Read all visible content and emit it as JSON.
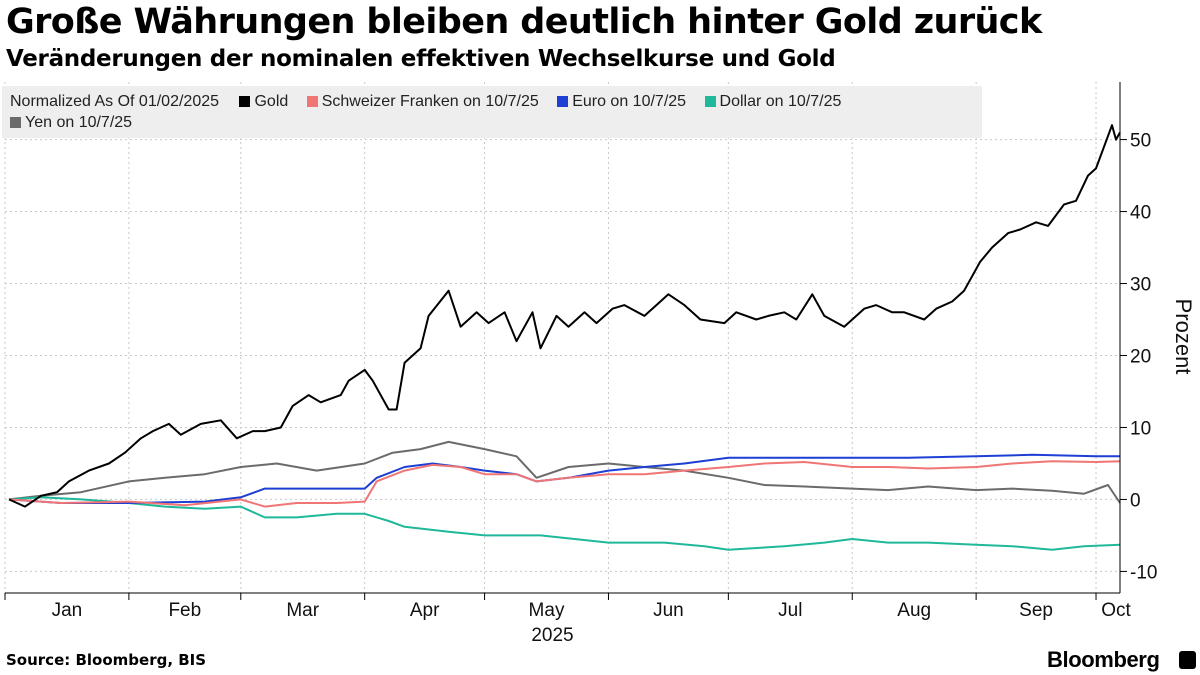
{
  "header": {
    "title": "Große Währungen bleiben deutlich hinter Gold zurück",
    "subtitle": "Veränderungen der nominalen effektiven Wechselkurse und Gold"
  },
  "legend": {
    "note": "Normalized As Of 01/02/2025",
    "items": [
      {
        "label": "Gold",
        "color": "#000000"
      },
      {
        "label": "Schweizer Franken on 10/7/25",
        "color": "#f07575"
      },
      {
        "label": "Euro on 10/7/25",
        "color": "#1d3fd4"
      },
      {
        "label": "Dollar on 10/7/25",
        "color": "#1fb89a"
      },
      {
        "label": "Yen on 10/7/25",
        "color": "#6b6b6b"
      }
    ]
  },
  "footer": {
    "source": "Source: Bloomberg, BIS",
    "brand": "Bloomberg"
  },
  "chart_data": {
    "type": "line",
    "x_type": "date",
    "xlim": [
      "2025-01-01",
      "2025-10-07"
    ],
    "ylim": [
      -13,
      58
    ],
    "ylabel": "Prozent",
    "y_ticks": [
      -10,
      0,
      10,
      20,
      30,
      40,
      50
    ],
    "x_ticks": [
      {
        "date": "2025-01-01",
        "label": "Jan"
      },
      {
        "date": "2025-02-01",
        "label": "Feb"
      },
      {
        "date": "2025-03-01",
        "label": "Mar"
      },
      {
        "date": "2025-04-01",
        "label": "Apr"
      },
      {
        "date": "2025-05-01",
        "label": "May"
      },
      {
        "date": "2025-06-01",
        "label": "Jun"
      },
      {
        "date": "2025-07-01",
        "label": "Jul"
      },
      {
        "date": "2025-08-01",
        "label": "Aug"
      },
      {
        "date": "2025-09-01",
        "label": "Sep"
      },
      {
        "date": "2025-10-01",
        "label": "Oct"
      }
    ],
    "year_label": "2025",
    "grid": true,
    "legend_position": "top-left",
    "series": [
      {
        "name": "Gold",
        "color": "#000000",
        "points": [
          [
            "2025-01-02",
            0
          ],
          [
            "2025-01-06",
            -1
          ],
          [
            "2025-01-10",
            0.5
          ],
          [
            "2025-01-14",
            1
          ],
          [
            "2025-01-17",
            2.5
          ],
          [
            "2025-01-22",
            4
          ],
          [
            "2025-01-27",
            5
          ],
          [
            "2025-01-31",
            6.5
          ],
          [
            "2025-02-04",
            8.5
          ],
          [
            "2025-02-07",
            9.5
          ],
          [
            "2025-02-11",
            10.5
          ],
          [
            "2025-02-14",
            9
          ],
          [
            "2025-02-19",
            10.5
          ],
          [
            "2025-02-24",
            11
          ],
          [
            "2025-02-28",
            8.5
          ],
          [
            "2025-03-04",
            9.5
          ],
          [
            "2025-03-07",
            9.5
          ],
          [
            "2025-03-11",
            10
          ],
          [
            "2025-03-14",
            13
          ],
          [
            "2025-03-18",
            14.5
          ],
          [
            "2025-03-21",
            13.5
          ],
          [
            "2025-03-26",
            14.5
          ],
          [
            "2025-03-28",
            16.5
          ],
          [
            "2025-04-01",
            18
          ],
          [
            "2025-04-03",
            16.5
          ],
          [
            "2025-04-07",
            12.5
          ],
          [
            "2025-04-09",
            12.5
          ],
          [
            "2025-04-11",
            19
          ],
          [
            "2025-04-15",
            21
          ],
          [
            "2025-04-17",
            25.5
          ],
          [
            "2025-04-22",
            29
          ],
          [
            "2025-04-25",
            24
          ],
          [
            "2025-04-29",
            26
          ],
          [
            "2025-05-02",
            24.5
          ],
          [
            "2025-05-06",
            26
          ],
          [
            "2025-05-09",
            22
          ],
          [
            "2025-05-13",
            26
          ],
          [
            "2025-05-15",
            21
          ],
          [
            "2025-05-19",
            25.5
          ],
          [
            "2025-05-22",
            24
          ],
          [
            "2025-05-26",
            26
          ],
          [
            "2025-05-29",
            24.5
          ],
          [
            "2025-06-02",
            26.5
          ],
          [
            "2025-06-05",
            27
          ],
          [
            "2025-06-10",
            25.5
          ],
          [
            "2025-06-13",
            27
          ],
          [
            "2025-06-16",
            28.5
          ],
          [
            "2025-06-20",
            27
          ],
          [
            "2025-06-24",
            25
          ],
          [
            "2025-06-30",
            24.5
          ],
          [
            "2025-07-03",
            26
          ],
          [
            "2025-07-08",
            25
          ],
          [
            "2025-07-11",
            25.5
          ],
          [
            "2025-07-15",
            26
          ],
          [
            "2025-07-18",
            25
          ],
          [
            "2025-07-22",
            28.5
          ],
          [
            "2025-07-25",
            25.5
          ],
          [
            "2025-07-30",
            24
          ],
          [
            "2025-08-04",
            26.5
          ],
          [
            "2025-08-07",
            27
          ],
          [
            "2025-08-11",
            26
          ],
          [
            "2025-08-14",
            26
          ],
          [
            "2025-08-19",
            25
          ],
          [
            "2025-08-22",
            26.5
          ],
          [
            "2025-08-26",
            27.5
          ],
          [
            "2025-08-29",
            29
          ],
          [
            "2025-09-02",
            33
          ],
          [
            "2025-09-05",
            35
          ],
          [
            "2025-09-09",
            37
          ],
          [
            "2025-09-12",
            37.5
          ],
          [
            "2025-09-16",
            38.5
          ],
          [
            "2025-09-19",
            38
          ],
          [
            "2025-09-23",
            41
          ],
          [
            "2025-09-26",
            41.5
          ],
          [
            "2025-09-29",
            45
          ],
          [
            "2025-10-01",
            46
          ],
          [
            "2025-10-03",
            49
          ],
          [
            "2025-10-05",
            52
          ],
          [
            "2025-10-06",
            50
          ],
          [
            "2025-10-07",
            51
          ]
        ]
      },
      {
        "name": "Schweizer Franken on 10/7/25",
        "color": "#f07575",
        "points": [
          [
            "2025-01-02",
            0
          ],
          [
            "2025-01-15",
            -0.5
          ],
          [
            "2025-02-01",
            -0.3
          ],
          [
            "2025-02-15",
            -0.8
          ],
          [
            "2025-03-01",
            0
          ],
          [
            "2025-03-07",
            -1
          ],
          [
            "2025-03-15",
            -0.5
          ],
          [
            "2025-03-25",
            -0.5
          ],
          [
            "2025-04-01",
            -0.3
          ],
          [
            "2025-04-04",
            2.5
          ],
          [
            "2025-04-11",
            4
          ],
          [
            "2025-04-18",
            4.8
          ],
          [
            "2025-04-25",
            4.5
          ],
          [
            "2025-05-01",
            3.5
          ],
          [
            "2025-05-09",
            3.5
          ],
          [
            "2025-05-14",
            2.5
          ],
          [
            "2025-05-22",
            3
          ],
          [
            "2025-06-01",
            3.5
          ],
          [
            "2025-06-10",
            3.5
          ],
          [
            "2025-06-20",
            4
          ],
          [
            "2025-07-01",
            4.5
          ],
          [
            "2025-07-10",
            5
          ],
          [
            "2025-07-20",
            5.2
          ],
          [
            "2025-08-01",
            4.5
          ],
          [
            "2025-08-10",
            4.5
          ],
          [
            "2025-08-20",
            4.3
          ],
          [
            "2025-09-01",
            4.5
          ],
          [
            "2025-09-10",
            5
          ],
          [
            "2025-09-20",
            5.3
          ],
          [
            "2025-10-01",
            5.2
          ],
          [
            "2025-10-07",
            5.3
          ]
        ]
      },
      {
        "name": "Euro on 10/7/25",
        "color": "#1d3fd4",
        "points": [
          [
            "2025-01-02",
            0
          ],
          [
            "2025-01-15",
            -0.5
          ],
          [
            "2025-02-01",
            -0.5
          ],
          [
            "2025-02-20",
            -0.3
          ],
          [
            "2025-03-01",
            0.3
          ],
          [
            "2025-03-07",
            1.5
          ],
          [
            "2025-03-20",
            1.5
          ],
          [
            "2025-04-01",
            1.5
          ],
          [
            "2025-04-04",
            3
          ],
          [
            "2025-04-11",
            4.5
          ],
          [
            "2025-04-18",
            5
          ],
          [
            "2025-04-25",
            4.5
          ],
          [
            "2025-05-01",
            4
          ],
          [
            "2025-05-09",
            3.5
          ],
          [
            "2025-05-14",
            2.5
          ],
          [
            "2025-05-22",
            3
          ],
          [
            "2025-06-01",
            4
          ],
          [
            "2025-06-10",
            4.5
          ],
          [
            "2025-06-20",
            5
          ],
          [
            "2025-07-01",
            5.8
          ],
          [
            "2025-07-15",
            5.8
          ],
          [
            "2025-08-01",
            5.8
          ],
          [
            "2025-08-15",
            5.8
          ],
          [
            "2025-09-01",
            6
          ],
          [
            "2025-09-15",
            6.2
          ],
          [
            "2025-10-01",
            6
          ],
          [
            "2025-10-07",
            6
          ]
        ]
      },
      {
        "name": "Dollar on 10/7/25",
        "color": "#1fb89a",
        "points": [
          [
            "2025-01-02",
            0
          ],
          [
            "2025-01-10",
            0.3
          ],
          [
            "2025-01-20",
            0
          ],
          [
            "2025-02-01",
            -0.5
          ],
          [
            "2025-02-10",
            -1
          ],
          [
            "2025-02-20",
            -1.3
          ],
          [
            "2025-03-01",
            -1
          ],
          [
            "2025-03-07",
            -2.5
          ],
          [
            "2025-03-15",
            -2.5
          ],
          [
            "2025-03-25",
            -2
          ],
          [
            "2025-04-01",
            -2
          ],
          [
            "2025-04-07",
            -3
          ],
          [
            "2025-04-11",
            -3.8
          ],
          [
            "2025-04-22",
            -4.5
          ],
          [
            "2025-05-01",
            -5
          ],
          [
            "2025-05-15",
            -5
          ],
          [
            "2025-06-01",
            -6
          ],
          [
            "2025-06-15",
            -6
          ],
          [
            "2025-06-25",
            -6.5
          ],
          [
            "2025-07-01",
            -7
          ],
          [
            "2025-07-15",
            -6.5
          ],
          [
            "2025-07-25",
            -6
          ],
          [
            "2025-08-01",
            -5.5
          ],
          [
            "2025-08-10",
            -6
          ],
          [
            "2025-08-20",
            -6
          ],
          [
            "2025-09-01",
            -6.3
          ],
          [
            "2025-09-10",
            -6.5
          ],
          [
            "2025-09-20",
            -7
          ],
          [
            "2025-09-28",
            -6.5
          ],
          [
            "2025-10-07",
            -6.3
          ]
        ]
      },
      {
        "name": "Yen on 10/7/25",
        "color": "#6b6b6b",
        "points": [
          [
            "2025-01-02",
            0
          ],
          [
            "2025-01-10",
            0.5
          ],
          [
            "2025-01-20",
            1
          ],
          [
            "2025-02-01",
            2.5
          ],
          [
            "2025-02-10",
            3
          ],
          [
            "2025-02-20",
            3.5
          ],
          [
            "2025-03-01",
            4.5
          ],
          [
            "2025-03-10",
            5
          ],
          [
            "2025-03-20",
            4
          ],
          [
            "2025-04-01",
            5
          ],
          [
            "2025-04-08",
            6.5
          ],
          [
            "2025-04-15",
            7
          ],
          [
            "2025-04-22",
            8
          ],
          [
            "2025-05-01",
            7
          ],
          [
            "2025-05-09",
            6
          ],
          [
            "2025-05-14",
            3
          ],
          [
            "2025-05-22",
            4.5
          ],
          [
            "2025-06-01",
            5
          ],
          [
            "2025-06-10",
            4.5
          ],
          [
            "2025-06-20",
            4
          ],
          [
            "2025-07-01",
            3
          ],
          [
            "2025-07-10",
            2
          ],
          [
            "2025-07-20",
            1.8
          ],
          [
            "2025-08-01",
            1.5
          ],
          [
            "2025-08-10",
            1.3
          ],
          [
            "2025-08-20",
            1.8
          ],
          [
            "2025-09-01",
            1.3
          ],
          [
            "2025-09-10",
            1.5
          ],
          [
            "2025-09-20",
            1.2
          ],
          [
            "2025-09-28",
            0.8
          ],
          [
            "2025-10-04",
            2
          ],
          [
            "2025-10-07",
            -0.5
          ]
        ]
      }
    ]
  }
}
